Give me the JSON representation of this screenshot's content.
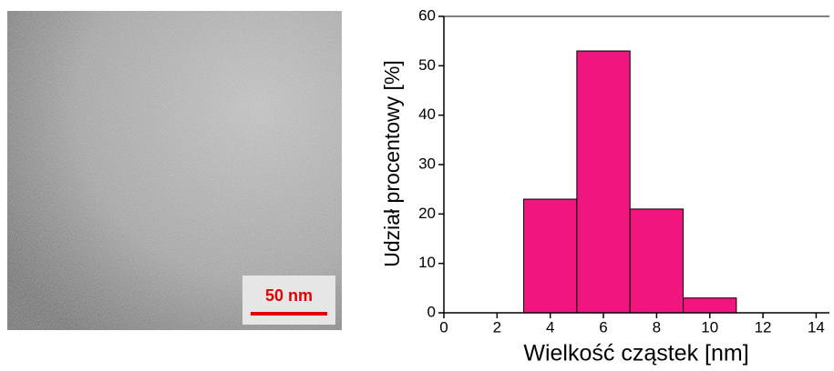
{
  "micrograph": {
    "scale_label": "50 nm"
  },
  "chart_data": {
    "type": "histogram",
    "bins": [
      3,
      5,
      7,
      9,
      11
    ],
    "values": [
      23,
      53,
      21,
      3
    ],
    "color": "#f0157f",
    "xlabel": "Wielkość cząstek [nm]",
    "ylabel": "Udział procentowy [%]",
    "xlim": [
      0,
      14.5
    ],
    "xticks": [
      0,
      2,
      4,
      6,
      8,
      10,
      12,
      14
    ],
    "ylim": [
      0,
      60
    ],
    "yticks": [
      0,
      10,
      20,
      30,
      40,
      50,
      60
    ]
  }
}
